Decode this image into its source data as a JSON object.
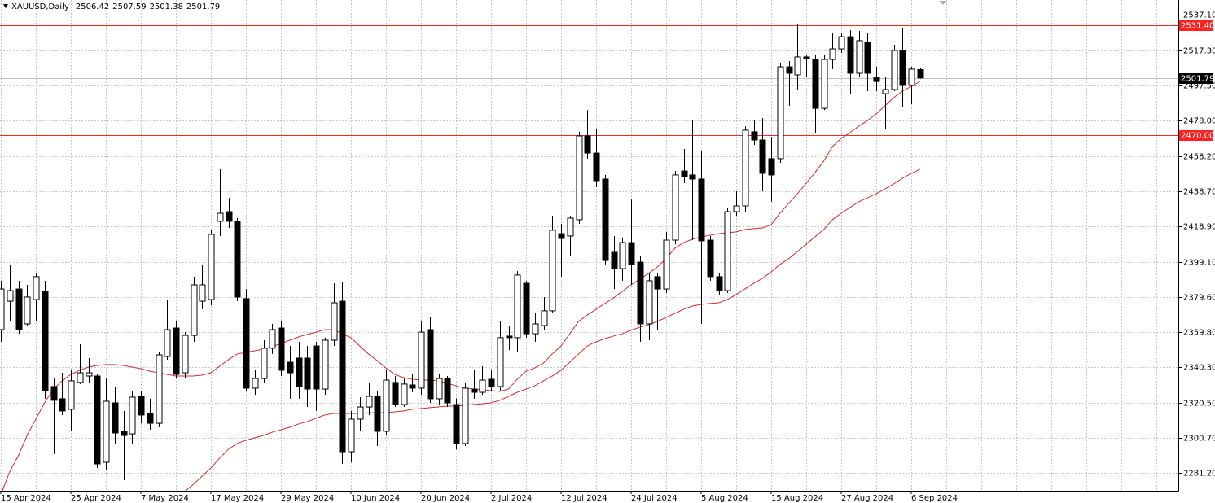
{
  "chart_data": {
    "type": "candlestick",
    "title": "XAUUSD,Daily",
    "categories": [
      "15 Apr 2024",
      null,
      null,
      null,
      null,
      null,
      null,
      null,
      "25 Apr 2024",
      null,
      null,
      null,
      null,
      null,
      null,
      null,
      "7 May 2024",
      null,
      null,
      null,
      null,
      null,
      null,
      null,
      "17 May 2024",
      null,
      null,
      null,
      null,
      null,
      null,
      null,
      "29 May 2024",
      null,
      null,
      null,
      null,
      null,
      null,
      null,
      "10 Jun 2024",
      null,
      null,
      null,
      null,
      null,
      null,
      null,
      "20 Jun 2024",
      null,
      null,
      null,
      null,
      null,
      null,
      null,
      "2 Jul 2024",
      null,
      null,
      null,
      null,
      null,
      null,
      null,
      "12 Jul 2024",
      null,
      null,
      null,
      null,
      null,
      null,
      null,
      "24 Jul 2024",
      null,
      null,
      null,
      null,
      null,
      null,
      null,
      "5 Aug 2024",
      null,
      null,
      null,
      null,
      null,
      null,
      null,
      "15 Aug 2024",
      null,
      null,
      null,
      null,
      null,
      null,
      null,
      "27 Aug 2024",
      null,
      null,
      null,
      null,
      null,
      null,
      null,
      "6 Sep 2024",
      null
    ],
    "open": [
      2361.2,
      2377.1,
      2383.9,
      2364.4,
      2378.0,
      2382.6,
      2329.4,
      2322.6,
      2316.7,
      2331.7,
      2335.3,
      2335.3,
      2287.1,
      2320.3,
      2304.4,
      2303.0,
      2323.9,
      2314.4,
      2308.9,
      2346.2,
      2362.1,
      2337.1,
      2358.0,
      2377.1,
      2378.0,
      2421.7,
      2427.1,
      2421.7,
      2378.5,
      2328.5,
      2333.9,
      2350.8,
      2362.1,
      2343.0,
      2345.3,
      2345.3,
      2352.1,
      2328.0,
      2355.3,
      2377.1,
      2293.0,
      2311.2,
      2318.0,
      2323.9,
      2304.4,
      2331.7,
      2319.4,
      2330.3,
      2328.5,
      2361.2,
      2322.6,
      2333.9,
      2319.4,
      2297.6,
      2328.0,
      2326.2,
      2333.5,
      2329.4,
      2357.6,
      2356.7,
      2387.1,
      2358.9,
      2363.5,
      2371.7,
      2414.8,
      2413.5,
      2422.6,
      2469.4,
      2459.8,
      2445.3,
      2404.4,
      2395.3,
      2409.8,
      2398.9,
      2364.4,
      2390.8,
      2383.9,
      2411.2,
      2449.8,
      2447.6,
      2445.3,
      2411.2,
      2390.8,
      2383.0,
      2427.1,
      2430.3,
      2471.7,
      2467.1,
      2456.7,
      2456.7,
      2508.0,
      2503.5,
      2513.5,
      2512.1,
      2484.8,
      2512.1,
      2518.0,
      2524.8,
      2504.4,
      2521.7,
      2502.1,
      2493.0,
      2495.3,
      2517.1,
      2497.6,
      2506.42
    ],
    "high": [
      2388.5,
      2397.6,
      2388.5,
      2386.2,
      2393.0,
      2388.5,
      2333.9,
      2337.1,
      2338.5,
      2353.0,
      2345.3,
      2336.2,
      2333.9,
      2329.4,
      2315.8,
      2327.1,
      2327.1,
      2322.6,
      2348.9,
      2378.0,
      2365.8,
      2359.8,
      2390.8,
      2397.6,
      2416.7,
      2450.8,
      2434.8,
      2423.5,
      2383.9,
      2338.5,
      2355.3,
      2364.4,
      2365.8,
      2352.1,
      2354.4,
      2352.1,
      2354.4,
      2356.7,
      2387.1,
      2388.0,
      2315.8,
      2323.5,
      2331.7,
      2327.1,
      2338.5,
      2335.3,
      2333.9,
      2336.2,
      2365.8,
      2368.0,
      2336.2,
      2335.3,
      2322.6,
      2331.7,
      2338.5,
      2340.8,
      2338.5,
      2365.8,
      2363.5,
      2393.9,
      2388.5,
      2370.3,
      2379.4,
      2424.8,
      2420.3,
      2424.8,
      2471.7,
      2483.9,
      2473.5,
      2447.6,
      2413.5,
      2412.6,
      2433.9,
      2402.1,
      2393.0,
      2393.0,
      2415.8,
      2449.8,
      2462.1,
      2478.0,
      2461.2,
      2413.5,
      2393.0,
      2429.4,
      2438.5,
      2474.8,
      2478.0,
      2479.4,
      2468.9,
      2510.3,
      2511.2,
      2531.7,
      2514.4,
      2514.4,
      2514.4,
      2527.1,
      2527.1,
      2528.5,
      2528.0,
      2527.1,
      2508.0,
      2502.1,
      2520.3,
      2529.4,
      2508.0,
      2507.59
    ],
    "low": [
      2354.4,
      2365.8,
      2358.9,
      2363.5,
      2365.8,
      2322.6,
      2291.7,
      2313.5,
      2304.4,
      2330.8,
      2331.7,
      2283.9,
      2282.6,
      2297.6,
      2277.1,
      2297.6,
      2308.9,
      2305.3,
      2306.7,
      2344.4,
      2333.9,
      2333.9,
      2354.4,
      2372.6,
      2374.8,
      2413.5,
      2418.0,
      2377.1,
      2327.1,
      2324.8,
      2331.7,
      2347.6,
      2335.3,
      2322.6,
      2322.6,
      2318.0,
      2315.8,
      2324.8,
      2352.1,
      2286.2,
      2287.1,
      2304.4,
      2313.5,
      2296.2,
      2302.1,
      2318.0,
      2318.0,
      2326.2,
      2324.8,
      2320.3,
      2319.4,
      2318.0,
      2294.4,
      2296.2,
      2322.6,
      2324.8,
      2327.1,
      2327.1,
      2349.8,
      2348.9,
      2356.7,
      2354.4,
      2361.2,
      2370.3,
      2390.8,
      2402.1,
      2420.3,
      2456.7,
      2440.8,
      2397.6,
      2383.9,
      2388.5,
      2386.2,
      2354.4,
      2355.3,
      2361.2,
      2381.7,
      2408.9,
      2443.0,
      2411.2,
      2364.4,
      2388.5,
      2380.8,
      2381.7,
      2424.8,
      2427.1,
      2464.4,
      2438.5,
      2432.6,
      2454.4,
      2486.2,
      2495.3,
      2502.1,
      2471.2,
      2483.9,
      2506.7,
      2515.8,
      2493.0,
      2502.1,
      2494.4,
      2494.4,
      2473.5,
      2494.4,
      2485.3,
      2487.1,
      2501.38
    ],
    "close": [
      2383.9,
      2383.0,
      2361.2,
      2379.4,
      2390.8,
      2327.1,
      2321.7,
      2315.8,
      2332.6,
      2337.1,
      2337.1,
      2286.2,
      2321.2,
      2303.5,
      2302.1,
      2323.5,
      2313.5,
      2308.9,
      2347.1,
      2361.2,
      2336.2,
      2358.0,
      2386.2,
      2386.2,
      2414.4,
      2426.2,
      2421.7,
      2379.4,
      2328.5,
      2333.9,
      2350.8,
      2361.2,
      2338.5,
      2337.1,
      2329.4,
      2328.0,
      2328.0,
      2355.3,
      2376.2,
      2293.0,
      2311.2,
      2318.0,
      2323.9,
      2304.4,
      2333.0,
      2319.4,
      2330.8,
      2328.5,
      2359.8,
      2322.6,
      2333.9,
      2320.3,
      2297.6,
      2328.5,
      2326.2,
      2333.0,
      2329.4,
      2356.7,
      2356.7,
      2391.7,
      2358.9,
      2364.4,
      2371.7,
      2416.7,
      2412.1,
      2423.5,
      2469.4,
      2459.8,
      2444.4,
      2399.8,
      2395.3,
      2409.8,
      2397.6,
      2364.4,
      2388.5,
      2383.9,
      2411.2,
      2447.6,
      2446.7,
      2445.3,
      2410.8,
      2390.8,
      2383.0,
      2427.1,
      2430.3,
      2472.6,
      2467.1,
      2448.5,
      2447.6,
      2508.0,
      2504.4,
      2513.5,
      2512.6,
      2484.8,
      2512.1,
      2518.0,
      2524.8,
      2504.4,
      2522.6,
      2504.4,
      2499.8,
      2495.3,
      2517.1,
      2497.6,
      2506.7,
      2501.79
    ],
    "up_color": "#ffffff",
    "down_color": "#000000",
    "overlays": [
      {
        "color": "#d42a2a",
        "values": [
          2268.9,
          2281.7,
          2290.8,
          2302.1,
          2311.2,
          2320.3,
          2328.0,
          2332.6,
          2336.2,
          2338.5,
          2340.3,
          2341.2,
          2341.7,
          2341.7,
          2341.2,
          2340.3,
          2339.4,
          2338.0,
          2337.1,
          2336.2,
          2335.3,
          2335.3,
          2335.3,
          2335.8,
          2337.1,
          2340.8,
          2344.4,
          2347.6,
          2348.5,
          2349.4,
          2350.3,
          2351.7,
          2353.5,
          2355.3,
          2357.1,
          2358.5,
          2359.8,
          2361.2,
          2361.2,
          2358.9,
          2356.7,
          2352.1,
          2347.6,
          2343.9,
          2339.8,
          2336.2,
          2334.4,
          2333.5,
          2333.0,
          2333.0,
          2332.6,
          2331.2,
          2329.8,
          2328.5,
          2328.0,
          2327.6,
          2327.1,
          2326.7,
          2328.0,
          2333.5,
          2338.0,
          2339.8,
          2342.6,
          2347.6,
          2352.1,
          2358.9,
          2365.8,
          2369.4,
          2372.6,
          2375.8,
          2378.9,
          2382.6,
          2386.2,
          2389.4,
          2392.6,
          2396.2,
          2400.8,
          2406.7,
          2409.8,
          2411.7,
          2413.0,
          2413.9,
          2414.8,
          2415.3,
          2415.8,
          2417.1,
          2417.6,
          2418.0,
          2419.8,
          2426.2,
          2431.7,
          2437.1,
          2443.0,
          2448.9,
          2455.3,
          2463.5,
          2468.0,
          2471.2,
          2474.8,
          2478.0,
          2481.7,
          2486.2,
          2490.8,
          2494.4,
          2497.1,
          2499.8
        ]
      },
      {
        "color": "#d42a2a",
        "values": [
          null,
          null,
          null,
          null,
          null,
          null,
          null,
          null,
          null,
          null,
          null,
          null,
          null,
          null,
          null,
          null,
          null,
          null,
          null,
          null,
          null,
          2270.8,
          2274.8,
          2279.4,
          2283.9,
          2289.4,
          2294.4,
          2297.6,
          2299.4,
          2300.8,
          2302.1,
          2303.9,
          2305.3,
          2306.7,
          2308.5,
          2309.8,
          2311.7,
          2313.5,
          2314.4,
          2314.4,
          2314.4,
          2314.4,
          2314.8,
          2314.8,
          2314.8,
          2315.3,
          2315.8,
          2316.7,
          2317.1,
          2317.6,
          2318.0,
          2318.5,
          2318.5,
          2318.9,
          2319.4,
          2319.8,
          2320.3,
          2321.7,
          2323.9,
          2326.2,
          2328.0,
          2329.8,
          2332.6,
          2335.3,
          2338.5,
          2343.0,
          2347.6,
          2352.1,
          2354.4,
          2356.2,
          2357.6,
          2358.9,
          2360.8,
          2362.6,
          2363.9,
          2365.8,
          2368.0,
          2370.3,
          2372.6,
          2374.4,
          2375.3,
          2375.8,
          2376.2,
          2378.0,
          2380.8,
          2383.9,
          2387.1,
          2389.8,
          2393.5,
          2397.6,
          2400.8,
          2404.8,
          2408.9,
          2413.0,
          2417.1,
          2422.6,
          2426.2,
          2429.4,
          2432.6,
          2434.8,
          2437.1,
          2439.8,
          2442.6,
          2445.8,
          2448.5,
          2450.8
        ]
      }
    ],
    "levels": [
      {
        "value": 2531.4,
        "label": "2531.40",
        "color": "#ff2020"
      },
      {
        "value": 2470,
        "label": "2470.00",
        "color": "#ff2020"
      }
    ],
    "price_line": {
      "value": 2501.79,
      "label": "2501.79",
      "color": "#c0c0c0"
    },
    "ylim": [
      2271.2,
      2545.3
    ],
    "yticks": [
      {
        "value": 2537.1,
        "label": "2537.10"
      },
      {
        "value": 2517.3,
        "label": "2517.30"
      },
      {
        "value": 2497.5,
        "label": "2497.50"
      },
      {
        "value": 2478,
        "label": "2478.00"
      },
      {
        "value": 2458.2,
        "label": "2458.20"
      },
      {
        "value": 2438.7,
        "label": "2438.70"
      },
      {
        "value": 2418.9,
        "label": "2418.90"
      },
      {
        "value": 2399.1,
        "label": "2399.10"
      },
      {
        "value": 2379.6,
        "label": "2379.60"
      },
      {
        "value": 2359.8,
        "label": "2359.80"
      },
      {
        "value": 2340.3,
        "label": "2340.30"
      },
      {
        "value": 2320.5,
        "label": "2320.50"
      },
      {
        "value": 2300.7,
        "label": "2300.70"
      },
      {
        "value": 2281.2,
        "label": "2281.20"
      }
    ],
    "grid": true
  }
}
